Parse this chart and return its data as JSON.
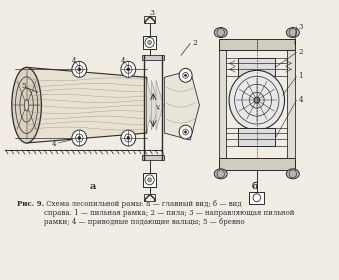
{
  "bg_color": "#f2ede4",
  "lc": "#2a2a2a",
  "fig_width": 3.39,
  "fig_height": 2.8,
  "dpi": 100,
  "caption_bold": "Рис. 9.",
  "caption_rest": " Схема лесопильной рамы: а — главный вид; б — вид\nсправа. 1 — пильная рамка; 2 — пила; 3 — направляющая пильной\nрамки; 4 — приводные подающие вальцы; 5 — бревно",
  "label_a": "а",
  "label_b": "б"
}
